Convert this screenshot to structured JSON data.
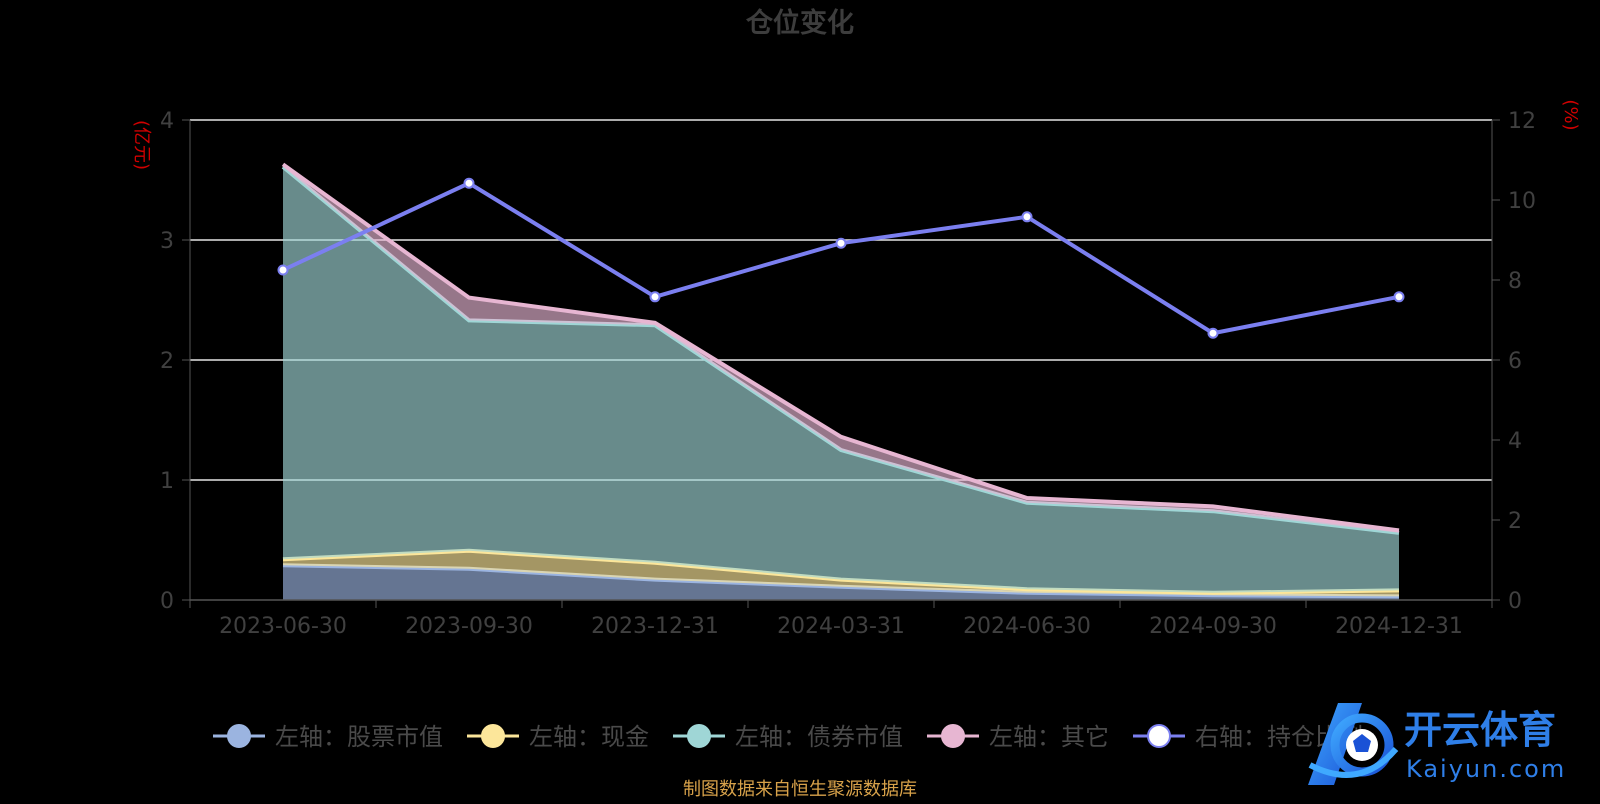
{
  "chart_data": {
    "type": "area",
    "title": "仓位变化",
    "left_axis_unit": "(亿元)",
    "right_axis_unit": "(%)",
    "categories": [
      "2023-06-30",
      "2023-09-30",
      "2023-12-31",
      "2024-03-31",
      "2024-06-30",
      "2024-09-30",
      "2024-12-31"
    ],
    "left_ylim": [
      0,
      4
    ],
    "left_ticks": [
      "0",
      "1",
      "2",
      "3",
      "4"
    ],
    "right_ylim": [
      0,
      12
    ],
    "right_ticks": [
      "0",
      "2",
      "4",
      "6",
      "8",
      "10",
      "12"
    ],
    "grid": true,
    "stacked": true,
    "legend_position": "bottom",
    "series": [
      {
        "name": "左轴：股票市值",
        "axis": "left",
        "type": "area",
        "color": "#9bb4e0",
        "values": [
          0.29,
          0.26,
          0.17,
          0.11,
          0.06,
          0.04,
          0.03
        ]
      },
      {
        "name": "左轴：现金",
        "axis": "left",
        "type": "area",
        "color": "#fce69a",
        "values": [
          0.05,
          0.15,
          0.14,
          0.06,
          0.03,
          0.02,
          0.05
        ]
      },
      {
        "name": "左轴：债券市值",
        "axis": "left",
        "type": "area",
        "color": "#9fd6d6",
        "values": [
          3.27,
          1.92,
          1.98,
          1.08,
          0.72,
          0.68,
          0.48
        ]
      },
      {
        "name": "左轴：其它",
        "axis": "left",
        "type": "area",
        "color": "#e7b6d2",
        "values": [
          0.02,
          0.19,
          0.02,
          0.11,
          0.04,
          0.04,
          0.02
        ]
      },
      {
        "name": "右轴：持仓比例",
        "axis": "right",
        "type": "line",
        "color": "#7b7ff0",
        "values": [
          8.25,
          10.42,
          7.58,
          8.92,
          9.58,
          6.67,
          7.58
        ]
      }
    ]
  },
  "source_note": "制图数据来自恒生聚源数据库",
  "watermark": {
    "brand_cn": "开云体育",
    "brand_en": "Kaiyun.com",
    "logo_letter": "K"
  }
}
